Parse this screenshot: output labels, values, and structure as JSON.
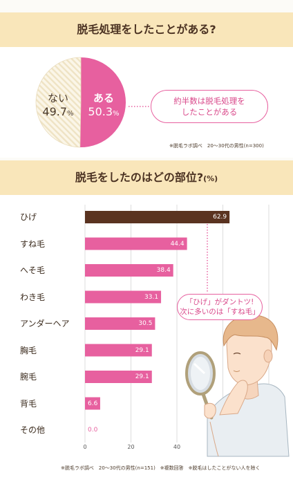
{
  "section1": {
    "title": "脱毛処理をしたことがある?",
    "callout_line1": "約半数は脱毛処理を",
    "callout_line2": "したことがある",
    "note": "※脱毛ラボ調べ　20〜30代の男性(n=300)"
  },
  "section2": {
    "title": "脱毛をしたのはどの部位?",
    "title_unit": "(%)",
    "callout_line1": "「ひげ」がダントツ!",
    "callout_line2": "次に多いのは「すね毛」",
    "note": "※脱毛ラボ調べ　20〜30代の男性(n=151)　※複数回答　※脱毛はしたことがない人を除く"
  },
  "colors": {
    "band": "#f9e6ba",
    "pink": "#e7609f",
    "brown": "#5a3320",
    "hatch": "#efe3c4"
  },
  "chart_data": [
    {
      "type": "pie",
      "title": "脱毛処理をしたことがある?",
      "slices": [
        {
          "label": "ある",
          "value": 50.3,
          "display": "50.3",
          "unit": "%",
          "color": "#e7609f"
        },
        {
          "label": "ない",
          "value": 49.7,
          "display": "49.7",
          "unit": "%",
          "color": "#efe3c4"
        }
      ]
    },
    {
      "type": "bar",
      "orientation": "horizontal",
      "title": "脱毛をしたのはどの部位?(%)",
      "categories": [
        "ひげ",
        "すね毛",
        "へそ毛",
        "わき毛",
        "アンダーヘア",
        "胸毛",
        "腕毛",
        "背毛",
        "その他"
      ],
      "values": [
        62.9,
        44.4,
        38.4,
        33.1,
        30.5,
        29.1,
        29.1,
        6.6,
        0.0
      ],
      "labels": [
        "62.9",
        "44.4",
        "38.4",
        "33.1",
        "30.5",
        "29.1",
        "29.1",
        "6.6",
        "0.0"
      ],
      "highlight": "ひげ",
      "xlim": [
        0,
        80
      ],
      "xticks": [
        0,
        20,
        40,
        60,
        80
      ],
      "grid": true
    }
  ]
}
